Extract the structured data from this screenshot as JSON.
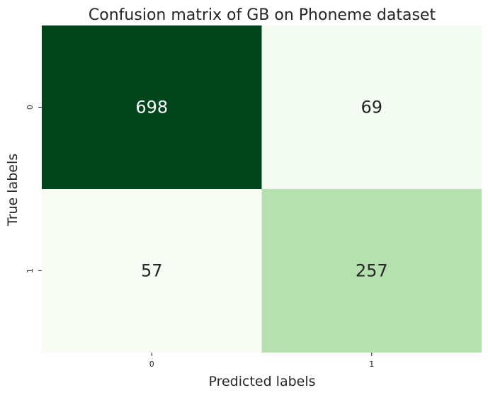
{
  "chart_data": {
    "type": "heatmap",
    "title": "Confusion matrix of GB on Phoneme dataset",
    "xlabel": "Predicted labels",
    "ylabel": "True labels",
    "x_categories": [
      "0",
      "1"
    ],
    "y_categories": [
      "0",
      "1"
    ],
    "values": [
      [
        698,
        69
      ],
      [
        57,
        257
      ]
    ],
    "colormap": "Greens",
    "color_range": [
      57,
      698
    ],
    "colorbar": false,
    "annotations": true,
    "grid": false
  }
}
